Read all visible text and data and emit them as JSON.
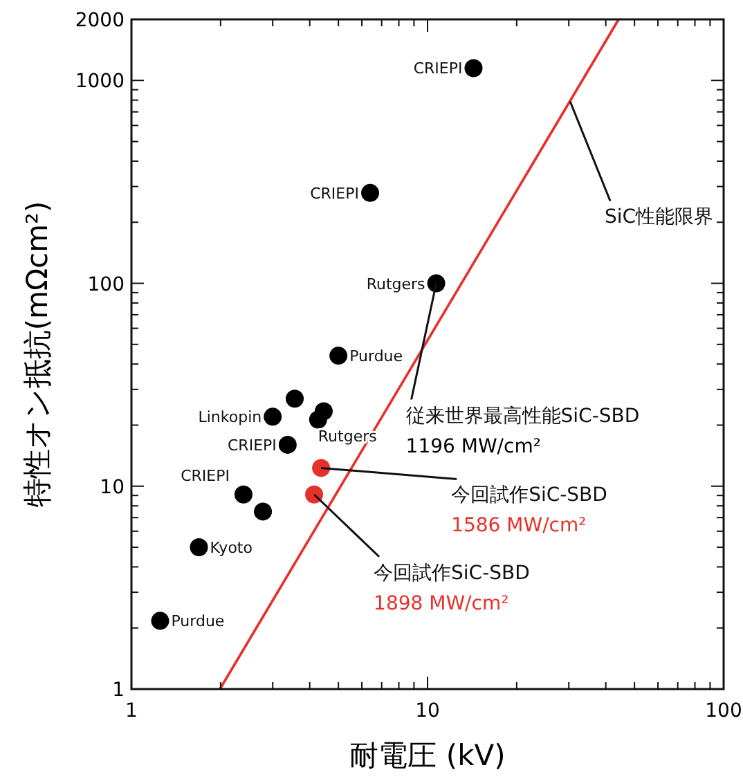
{
  "chart_data": {
    "type": "scatter",
    "xlabel": "耐電圧 (kV)",
    "ylabel": "特性オン抵抗(mΩcm²)",
    "log": "xy",
    "marker": "circle",
    "xlim": [
      1,
      100
    ],
    "ylim": [
      1,
      2000
    ],
    "xticks": [
      1,
      {
        "value": 2,
        "label": null
      },
      {
        "value": 3,
        "label": null
      },
      {
        "value": 4,
        "label": null
      },
      {
        "value": 5,
        "label": null
      },
      {
        "value": 6,
        "label": null
      },
      {
        "value": 7,
        "label": null
      },
      {
        "value": 8,
        "label": null
      },
      {
        "value": 9,
        "label": null
      },
      10,
      {
        "value": 20,
        "label": null
      },
      {
        "value": 30,
        "label": null
      },
      {
        "value": 40,
        "label": null
      },
      {
        "value": 50,
        "label": null
      },
      {
        "value": 60,
        "label": null
      },
      {
        "value": 70,
        "label": null
      },
      {
        "value": 80,
        "label": null
      },
      {
        "value": 90,
        "label": null
      },
      100
    ],
    "yticks": [
      1,
      {
        "value": 2,
        "label": null
      },
      {
        "value": 3,
        "label": null
      },
      {
        "value": 4,
        "label": null
      },
      {
        "value": 5,
        "label": null
      },
      {
        "value": 6,
        "label": null
      },
      {
        "value": 7,
        "label": null
      },
      {
        "value": 8,
        "label": null
      },
      {
        "value": 9,
        "label": null
      },
      10,
      {
        "value": 20,
        "label": null
      },
      {
        "value": 30,
        "label": null
      },
      {
        "value": 40,
        "label": null
      },
      {
        "value": 50,
        "label": null
      },
      {
        "value": 60,
        "label": null
      },
      {
        "value": 70,
        "label": null
      },
      {
        "value": 80,
        "label": null
      },
      {
        "value": 90,
        "label": null
      },
      100,
      {
        "value": 200,
        "label": null
      },
      {
        "value": 300,
        "label": null
      },
      {
        "value": 400,
        "label": null
      },
      {
        "value": 500,
        "label": null
      },
      {
        "value": 600,
        "label": null
      },
      {
        "value": 700,
        "label": null
      },
      {
        "value": 800,
        "label": null
      },
      {
        "value": 900,
        "label": null
      },
      1000,
      2000
    ],
    "series": [
      {
        "type": "line",
        "color": "#e8302a",
        "marker": "none",
        "x": [
          1.99,
          44.2
        ],
        "values": [
          1,
          2000
        ]
      },
      {
        "type": "scatter",
        "color": "#000000",
        "x": [
          14.3,
          6.4,
          10.7,
          5.0,
          3.56,
          3.0,
          4.46,
          4.27,
          3.37,
          2.39,
          2.78,
          1.69,
          1.25
        ],
        "values": [
          1150,
          279,
          100,
          44,
          27,
          22,
          23.4,
          21.3,
          16,
          9.1,
          7.5,
          5.0,
          2.17
        ]
      },
      {
        "type": "scatter",
        "color": "#e8302a",
        "x": [
          4.37,
          4.14
        ],
        "values": [
          12.3,
          9.1
        ]
      }
    ],
    "annotations": [
      {
        "text": "CRIEPI",
        "x": 14.3,
        "y": 1150
      },
      {
        "text": "CRIEPI",
        "x": 6.4,
        "y": 279
      },
      {
        "text": "Rutgers",
        "x": 10.7,
        "y": 100
      },
      {
        "text": "Purdue",
        "x": 5.0,
        "y": 44
      },
      {
        "text": "Linkopin",
        "x": 3.0,
        "y": 22
      },
      {
        "text": "Rutgers",
        "x": 4.27,
        "y": 21.3
      },
      {
        "text": "CRIEPI",
        "x": 3.37,
        "y": 16
      },
      {
        "text": "CRIEPI",
        "x": 2.39,
        "y": 9.1
      },
      {
        "text": "Kyoto",
        "x": 1.69,
        "y": 5.0
      },
      {
        "text": "Purdue",
        "x": 1.25,
        "y": 2.17
      },
      {
        "text": "SiC性能限界",
        "x": 30.3,
        "y": 789
      },
      {
        "text": "従来世界最高性能SiC-SBD",
        "x": 10.7,
        "y": 100
      },
      "1196 MW/cm²",
      {
        "text": "今回試作SiC-SBD",
        "x": 4.37,
        "y": 12.3
      },
      "1586 MW/cm²",
      {
        "text": "今回試作SiC-SBD",
        "x": 4.14,
        "y": 9.1
      },
      "1898 MW/cm²"
    ]
  }
}
